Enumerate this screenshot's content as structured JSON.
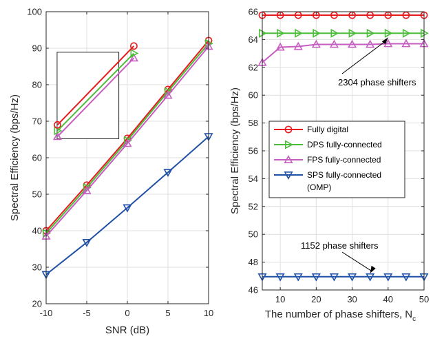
{
  "chart_data": [
    {
      "type": "line",
      "xlabel": "SNR (dB)",
      "ylabel": "Spectral Efficiency (bps/Hz)",
      "xlim": [
        -10,
        10
      ],
      "ylim": [
        20,
        100
      ],
      "xticks": [
        -10,
        -5,
        0,
        5,
        10
      ],
      "yticks": [
        20,
        30,
        40,
        50,
        60,
        70,
        80,
        90,
        100
      ],
      "grid": true,
      "x": [
        -10,
        -5,
        0,
        5,
        10
      ],
      "series": [
        {
          "key": "fd",
          "values": [
            40.0,
            52.5,
            65.3,
            78.7,
            92.1
          ]
        },
        {
          "key": "dps",
          "values": [
            39.3,
            51.8,
            64.7,
            78.1,
            91.3
          ]
        },
        {
          "key": "fps",
          "values": [
            38.5,
            51.0,
            63.9,
            77.1,
            90.5
          ]
        },
        {
          "key": "sps",
          "values": [
            28.0,
            36.8,
            46.3,
            56.0,
            65.8
          ]
        }
      ],
      "inset": {
        "frame": {
          "x0": -8.65,
          "x1": -1.05,
          "y0": 65.2,
          "y1": 88.9
        },
        "markers": {
          "fd": [
            [
              -8.6,
              69.0
            ],
            [
              0.8,
              90.6
            ]
          ],
          "dps": [
            [
              -8.6,
              67.4
            ],
            [
              0.8,
              88.6
            ]
          ],
          "fps": [
            [
              -8.6,
              65.8
            ],
            [
              0.8,
              87.3
            ]
          ]
        }
      }
    },
    {
      "type": "line",
      "xlabel": "The number of phase shifters, N",
      "xlabel_sub": "c",
      "ylabel": "Spectral Efficiency (bps/Hz)",
      "xlim": [
        5,
        50
      ],
      "ylim": [
        46,
        66
      ],
      "xticks": [
        10,
        20,
        30,
        40,
        50
      ],
      "yticks": [
        46,
        48,
        50,
        52,
        54,
        56,
        58,
        60,
        62,
        64,
        66
      ],
      "grid": true,
      "x": [
        5,
        10,
        15,
        20,
        25,
        30,
        35,
        40,
        45,
        50
      ],
      "series": [
        {
          "key": "fd",
          "values": [
            65.75,
            65.75,
            65.75,
            65.75,
            65.75,
            65.75,
            65.75,
            65.75,
            65.75,
            65.75
          ]
        },
        {
          "key": "dps",
          "values": [
            64.45,
            64.45,
            64.45,
            64.45,
            64.45,
            64.45,
            64.45,
            64.45,
            64.45,
            64.45
          ]
        },
        {
          "key": "fps",
          "values": [
            62.35,
            63.45,
            63.5,
            63.65,
            63.65,
            63.65,
            63.65,
            63.7,
            63.7,
            63.7
          ]
        },
        {
          "key": "sps",
          "values": [
            46.95,
            46.95,
            46.95,
            46.95,
            46.95,
            46.95,
            46.95,
            46.95,
            46.95,
            46.95
          ]
        }
      ],
      "legend": {
        "placement": "center-left",
        "entries": [
          {
            "key": "fd",
            "lines": [
              "Fully digital"
            ]
          },
          {
            "key": "dps",
            "lines": [
              "DPS fully-connected"
            ]
          },
          {
            "key": "fps",
            "lines": [
              "FPS fully-connected"
            ]
          },
          {
            "key": "sps",
            "lines": [
              "SPS fully-connected",
              "(OMP)"
            ]
          }
        ]
      },
      "annotations": [
        {
          "text": "2304 phase shifters",
          "points_to": [
            40,
            64.45
          ]
        },
        {
          "text": "1152 phase shifters",
          "points_to": [
            35,
            46.95
          ]
        }
      ]
    }
  ],
  "series_style": {
    "fd": {
      "color": "#e8191d",
      "marker": "circle"
    },
    "dps": {
      "color": "#4cbd3a",
      "marker": "triangle-right"
    },
    "fps": {
      "color": "#c65ec2",
      "marker": "triangle-up"
    },
    "sps": {
      "color": "#1f4fa6",
      "marker": "triangle-down"
    }
  }
}
